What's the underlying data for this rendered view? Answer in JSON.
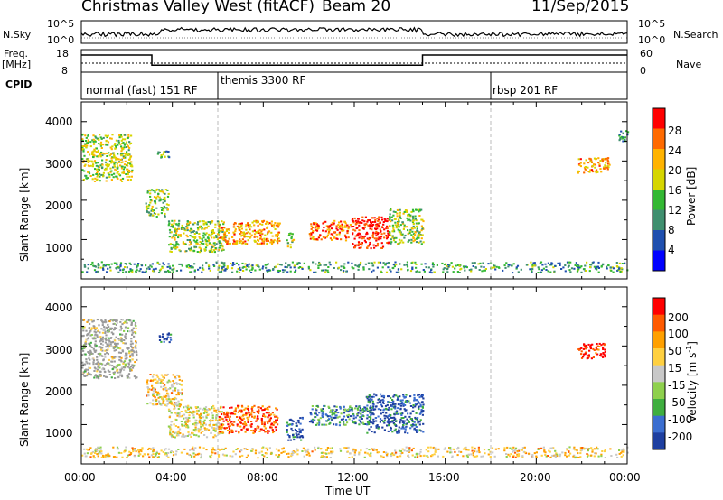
{
  "header": {
    "station": "Christmas Valley West (fitACF)",
    "beam": "Beam 20",
    "date": "11/Sep/2015"
  },
  "panels": {
    "nsky_label": "N.Sky",
    "nsearch_label": "N.Search",
    "nsky_ticks": [
      "10^5",
      "10^0"
    ],
    "nsearch_ticks": [
      "10^5",
      "10^0"
    ],
    "freq_label": "Freq.",
    "freq_unit": "[MHz]",
    "freq_ticks": [
      "18",
      "8"
    ],
    "nave_label": "Nave",
    "nave_ticks": [
      "60",
      "0"
    ],
    "cpid_label": "CPID",
    "cpid_segments": [
      "normal (fast) 151 RF",
      "themis 3300 RF",
      "rbsp 201 RF"
    ]
  },
  "axes": {
    "ylabel": "Slant Range [km]",
    "xlabel": "Time UT",
    "yticks": [
      "4000",
      "3000",
      "2000",
      "1000"
    ],
    "xticks": [
      "00:00",
      "04:00",
      "08:00",
      "12:00",
      "16:00",
      "20:00",
      "00:00"
    ],
    "power_label": "Power [dB]",
    "power_ticks": [
      "28",
      "24",
      "20",
      "16",
      "12",
      "8",
      "4"
    ],
    "velocity_label": "Velocity [m s",
    "velocity_sup": "-1",
    "velocity_close": "]",
    "velocity_ticks": [
      "200",
      "100",
      "50",
      "15",
      "-15",
      "-50",
      "-100",
      "-200"
    ]
  },
  "colors": {
    "power_scale": [
      "#0000ff",
      "#1f4faf",
      "#3f8f6f",
      "#33b833",
      "#d6d600",
      "#ffb300",
      "#ff6a00",
      "#ff0000"
    ],
    "velocity_scale": [
      "#1e3fa0",
      "#3b6ed0",
      "#3fae3f",
      "#8ed04d",
      "#c8c8c8",
      "#ffd040",
      "#ffa000",
      "#ff5a00",
      "#ff0000"
    ],
    "ground": "#9a9a9a"
  },
  "chart_data": [
    {
      "type": "line",
      "name": "frequency",
      "ylabel": "Freq. [MHz]",
      "ylim": [
        8,
        18
      ],
      "points": [
        [
          0,
          15.6
        ],
        [
          3.1,
          15.6
        ],
        [
          3.1,
          11.1
        ],
        [
          15.0,
          11.1
        ],
        [
          15.0,
          15.6
        ],
        [
          24,
          15.6
        ]
      ]
    },
    {
      "type": "heatmap",
      "name": "power",
      "xlabel": "Time UT",
      "ylabel": "Slant Range [km]",
      "xlim": [
        0,
        24
      ],
      "ylim": [
        0,
        4500
      ],
      "colorbar_label": "Power [dB]",
      "scatter_regions": [
        {
          "t_start": 0.0,
          "t_end": 2.2,
          "r_min": 2500,
          "r_max": 3700,
          "level": 0.55
        },
        {
          "t_start": 3.3,
          "t_end": 3.9,
          "r_min": 3100,
          "r_max": 3350,
          "level": 0.4
        },
        {
          "t_start": 2.8,
          "t_end": 3.8,
          "r_min": 1600,
          "r_max": 2300,
          "level": 0.45
        },
        {
          "t_start": 3.8,
          "t_end": 6.3,
          "r_min": 700,
          "r_max": 1500,
          "level": 0.5
        },
        {
          "t_start": 6.0,
          "t_end": 8.7,
          "r_min": 900,
          "r_max": 1500,
          "level": 0.7
        },
        {
          "t_start": 9.0,
          "t_end": 9.3,
          "r_min": 800,
          "r_max": 1200,
          "level": 0.5
        },
        {
          "t_start": 10.0,
          "t_end": 11.8,
          "r_min": 1000,
          "r_max": 1500,
          "level": 0.8
        },
        {
          "t_start": 11.8,
          "t_end": 13.5,
          "r_min": 800,
          "r_max": 1600,
          "level": 0.95
        },
        {
          "t_start": 13.5,
          "t_end": 15.0,
          "r_min": 900,
          "r_max": 1800,
          "level": 0.5
        },
        {
          "t_start": 21.8,
          "t_end": 23.2,
          "r_min": 2700,
          "r_max": 3100,
          "level": 0.7
        },
        {
          "t_start": 23.6,
          "t_end": 24.0,
          "r_min": 3500,
          "r_max": 3800,
          "level": 0.3
        },
        {
          "t_start": 0.0,
          "t_end": 24.0,
          "r_min": 180,
          "r_max": 450,
          "level": 0.35
        }
      ]
    },
    {
      "type": "heatmap",
      "name": "velocity",
      "xlabel": "Time UT",
      "ylabel": "Slant Range [km]",
      "xlim": [
        0,
        24
      ],
      "ylim": [
        0,
        4500
      ],
      "colorbar_label": "Velocity [m s-1]",
      "scatter_regions": [
        {
          "t_start": 0.0,
          "t_end": 2.4,
          "r_min": 2200,
          "r_max": 3700,
          "level": 0.5,
          "ground": true
        },
        {
          "t_start": 3.4,
          "t_end": 3.9,
          "r_min": 3100,
          "r_max": 3350,
          "level": 0.05
        },
        {
          "t_start": 2.8,
          "t_end": 4.4,
          "r_min": 1500,
          "r_max": 2300,
          "level": 0.6
        },
        {
          "t_start": 3.8,
          "t_end": 6.2,
          "r_min": 700,
          "r_max": 1500,
          "level": 0.55
        },
        {
          "t_start": 6.0,
          "t_end": 8.6,
          "r_min": 800,
          "r_max": 1500,
          "level": 0.85
        },
        {
          "t_start": 9.0,
          "t_end": 9.7,
          "r_min": 600,
          "r_max": 1200,
          "level": 0.1
        },
        {
          "t_start": 10.0,
          "t_end": 12.8,
          "r_min": 1000,
          "r_max": 1500,
          "level": 0.2
        },
        {
          "t_start": 12.5,
          "t_end": 15.0,
          "r_min": 800,
          "r_max": 1800,
          "level": 0.1
        },
        {
          "t_start": 21.8,
          "t_end": 23.0,
          "r_min": 2700,
          "r_max": 3100,
          "level": 0.95
        },
        {
          "t_start": 0.0,
          "t_end": 24.0,
          "r_min": 180,
          "r_max": 450,
          "level": 0.6
        }
      ]
    }
  ]
}
